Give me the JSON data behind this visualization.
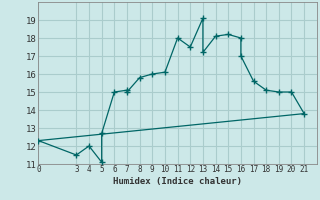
{
  "xlabel": "Humidex (Indice chaleur)",
  "background_color": "#cce8e8",
  "grid_color": "#aacccc",
  "line_color": "#006666",
  "xlim": [
    0,
    22
  ],
  "ylim": [
    11,
    20
  ],
  "xticks": [
    0,
    3,
    4,
    5,
    6,
    7,
    8,
    9,
    10,
    11,
    12,
    13,
    14,
    15,
    16,
    17,
    18,
    19,
    20,
    21
  ],
  "yticks": [
    11,
    12,
    13,
    14,
    15,
    16,
    17,
    18,
    19
  ],
  "line1_x": [
    0,
    3,
    4,
    5,
    5,
    6,
    7,
    7,
    8,
    9,
    10,
    11,
    12,
    13,
    13,
    14,
    15,
    16,
    16,
    17,
    18,
    19,
    20,
    21
  ],
  "line1_y": [
    12.3,
    11.5,
    12.0,
    11.1,
    12.7,
    15.0,
    15.1,
    15.0,
    15.8,
    16.0,
    16.1,
    18.0,
    17.5,
    19.1,
    17.2,
    18.1,
    18.2,
    18.0,
    17.0,
    15.6,
    15.1,
    15.0,
    15.0,
    13.8
  ],
  "line2_x": [
    0,
    21
  ],
  "line2_y": [
    12.3,
    13.8
  ]
}
